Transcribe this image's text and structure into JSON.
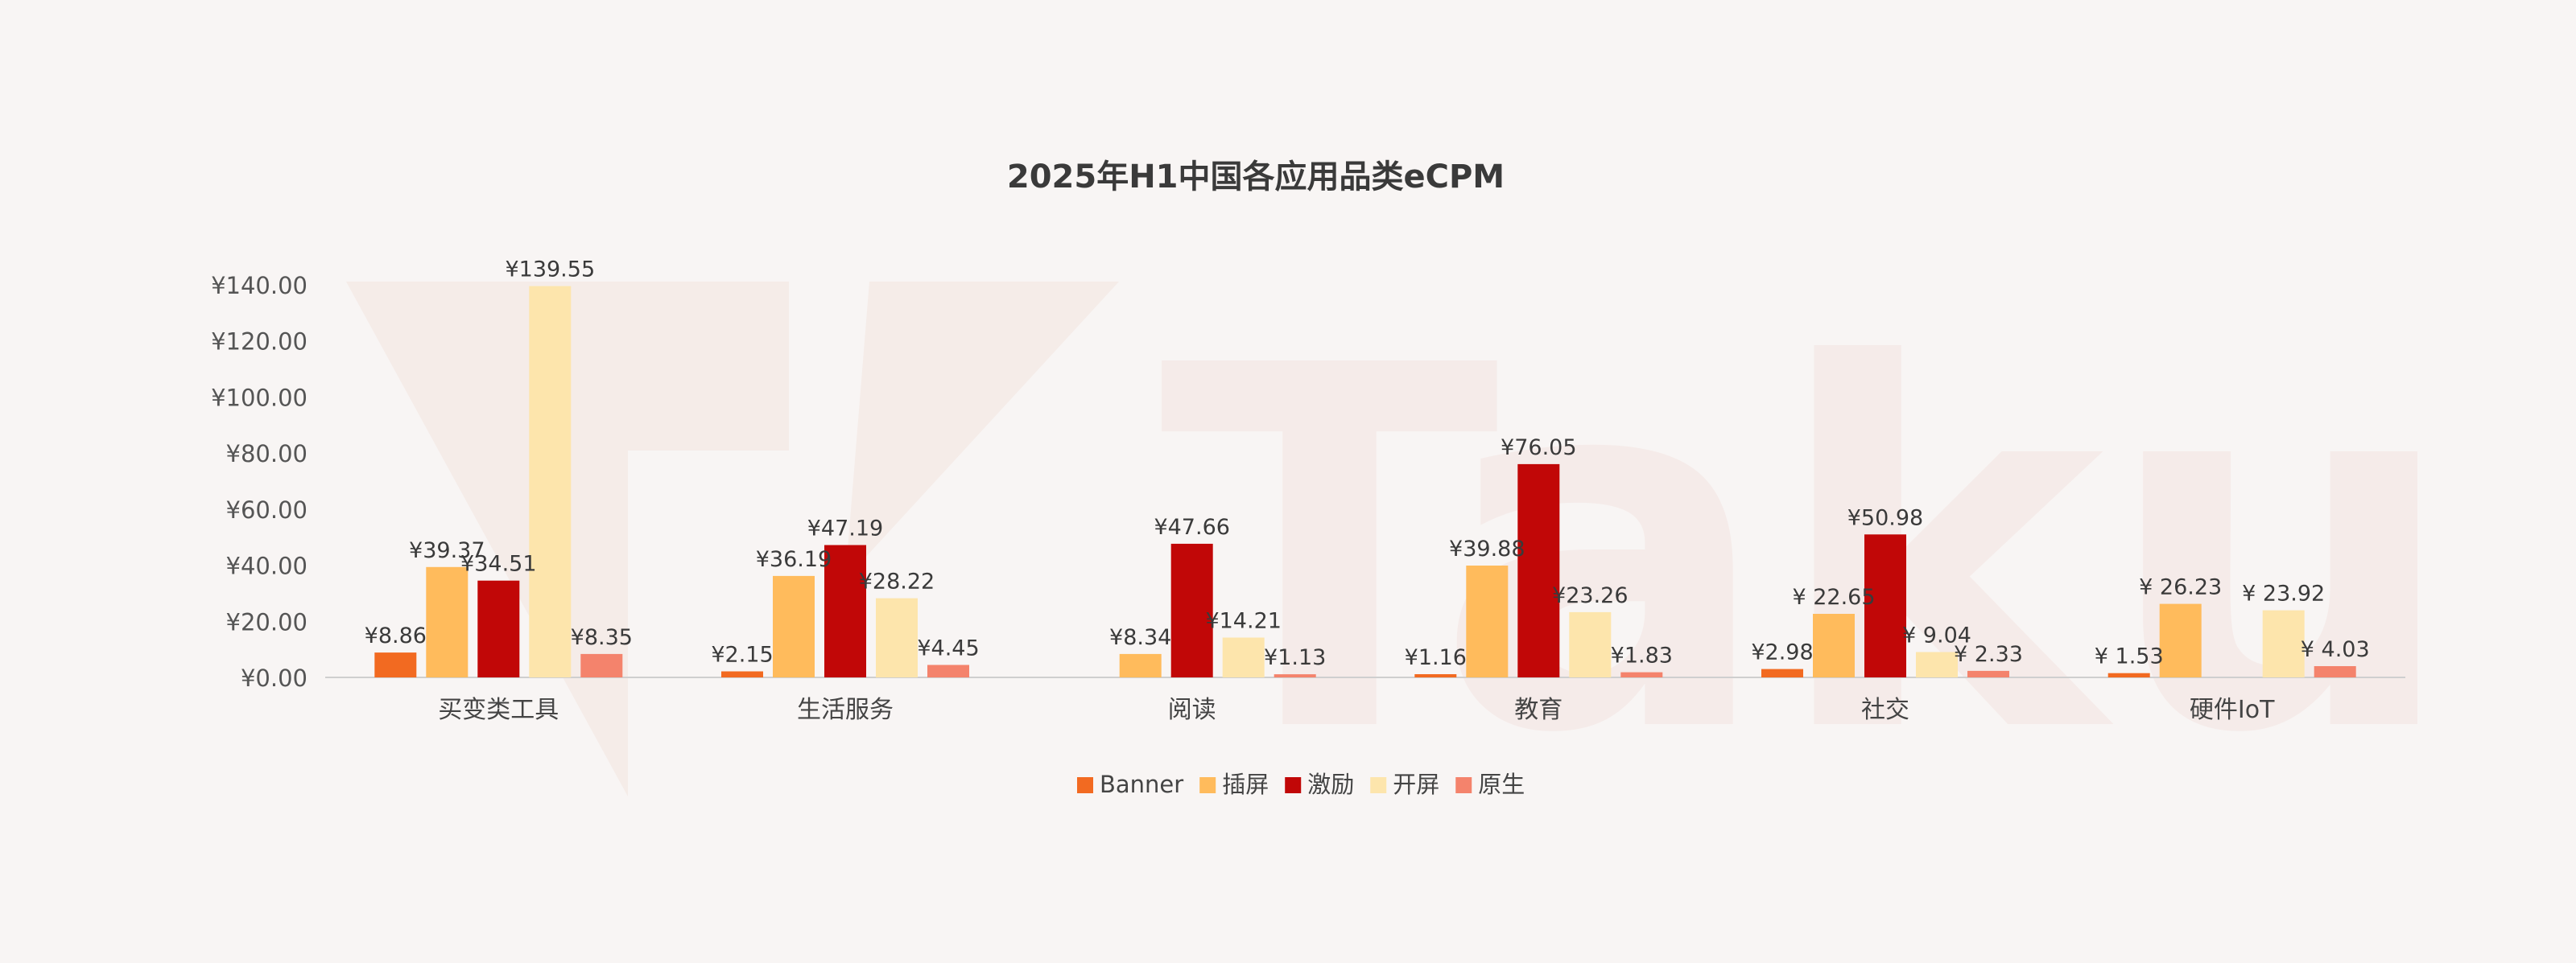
{
  "colors": {
    "background": "#f8f5f4",
    "watermark": "#f3e3df",
    "axis": "#cfcfcf"
  },
  "watermark": "Taku",
  "chart_data": {
    "type": "bar",
    "title": "2025年H1中国各应用品类eCPM",
    "xlabel": "",
    "ylabel": "",
    "ylim": [
      0,
      140
    ],
    "yticks": [
      0,
      20,
      40,
      60,
      80,
      100,
      120,
      140
    ],
    "ytick_labels": [
      "¥0.00",
      "¥20.00",
      "¥40.00",
      "¥60.00",
      "¥80.00",
      "¥100.00",
      "¥120.00",
      "¥140.00"
    ],
    "grid": false,
    "legend_position": "bottom-center",
    "categories": [
      "买变类工具",
      "生活服务",
      "阅读",
      "教育",
      "社交",
      "硬件IoT"
    ],
    "series": [
      {
        "name": "Banner",
        "color": "#f26a21",
        "values": [
          8.86,
          2.15,
          null,
          1.16,
          2.98,
          1.53
        ],
        "labels": [
          "¥8.86",
          "¥2.15",
          "",
          "¥1.16",
          "¥2.98",
          "¥ 1.53"
        ]
      },
      {
        "name": "插屏",
        "color": "#ffbb5c",
        "values": [
          39.37,
          36.19,
          8.34,
          39.88,
          22.65,
          26.23
        ],
        "labels": [
          "¥39.37",
          "¥36.19",
          "¥8.34",
          "¥39.88",
          "¥ 22.65",
          "¥ 26.23"
        ]
      },
      {
        "name": "激励",
        "color": "#c10707",
        "values": [
          34.51,
          47.19,
          47.66,
          76.05,
          50.98,
          null
        ],
        "labels": [
          "¥34.51",
          "¥47.19",
          "¥47.66",
          "¥76.05",
          "¥50.98",
          ""
        ]
      },
      {
        "name": "开屏",
        "color": "#fde5ac",
        "values": [
          139.55,
          28.22,
          14.21,
          23.26,
          9.04,
          23.92
        ],
        "labels": [
          "¥139.55",
          "¥28.22",
          "¥14.21",
          "¥23.26",
          "¥ 9.04",
          "¥ 23.92"
        ]
      },
      {
        "name": "原生",
        "color": "#f4836c",
        "values": [
          8.35,
          4.45,
          1.13,
          1.83,
          2.33,
          4.03
        ],
        "labels": [
          "¥8.35",
          "¥4.45",
          "¥1.13",
          "¥1.83",
          "¥ 2.33",
          "¥ 4.03"
        ]
      }
    ]
  }
}
